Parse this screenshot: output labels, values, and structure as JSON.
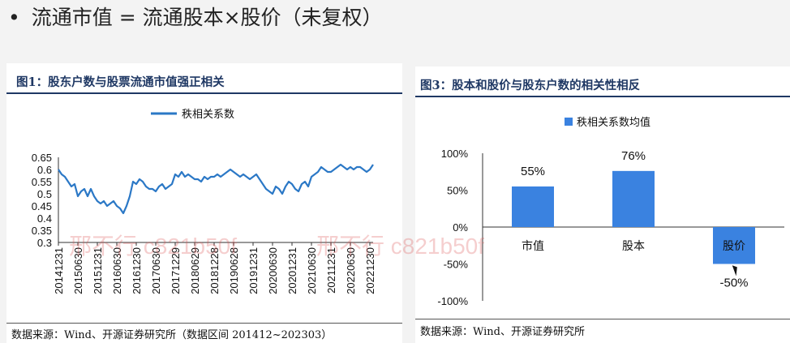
{
  "slide": {
    "bullet": "•",
    "title": "流通市值 = 流通股本×股价（未复权）"
  },
  "panel1": {
    "title": "图1：股东户数与股票流通市值强正相关",
    "source": "数据来源：Wind、开源证券研究所（数据区间 201412~202303）"
  },
  "panel2": {
    "title": "图3：股本和股价与股东户数的相关性相反",
    "source": "数据来源：Wind、开源证券研究所"
  },
  "watermark": {
    "text1": "邢不行 c821b50f",
    "text2": "邢不行 c821b50f"
  },
  "colors": {
    "line": "#2b78c6",
    "bar": "#3a82e0",
    "accent": "#1f3864"
  },
  "chart_data": [
    {
      "type": "line",
      "ylim": [
        0.3,
        0.65
      ],
      "yticks": [
        "0.3",
        "0.35",
        "0.4",
        "0.45",
        "0.5",
        "0.55",
        "0.6",
        "0.65"
      ],
      "xticks": [
        "20141231",
        "20150630",
        "20151231",
        "20160630",
        "20161230",
        "20170630",
        "20171229",
        "20180629",
        "20181228",
        "20190628",
        "20191231",
        "20200630",
        "20201231",
        "20210630",
        "20211231",
        "20220630",
        "20221230"
      ],
      "legend": "秩相关系数",
      "series": [
        {
          "name": "秩相关系数",
          "x_start": "2014-12",
          "x_end": "2023-03",
          "frequency": "monthly",
          "values": [
            0.6,
            0.58,
            0.57,
            0.55,
            0.53,
            0.54,
            0.49,
            0.51,
            0.52,
            0.49,
            0.52,
            0.49,
            0.47,
            0.46,
            0.47,
            0.45,
            0.46,
            0.47,
            0.45,
            0.44,
            0.42,
            0.45,
            0.49,
            0.55,
            0.54,
            0.56,
            0.55,
            0.53,
            0.52,
            0.52,
            0.51,
            0.53,
            0.54,
            0.52,
            0.53,
            0.54,
            0.58,
            0.57,
            0.59,
            0.57,
            0.58,
            0.57,
            0.56,
            0.56,
            0.55,
            0.57,
            0.56,
            0.57,
            0.57,
            0.58,
            0.57,
            0.58,
            0.59,
            0.6,
            0.59,
            0.58,
            0.57,
            0.58,
            0.57,
            0.56,
            0.57,
            0.58,
            0.56,
            0.54,
            0.52,
            0.51,
            0.5,
            0.53,
            0.52,
            0.5,
            0.53,
            0.55,
            0.54,
            0.52,
            0.51,
            0.54,
            0.55,
            0.53,
            0.57,
            0.58,
            0.59,
            0.61,
            0.6,
            0.59,
            0.59,
            0.6,
            0.61,
            0.62,
            0.61,
            0.6,
            0.61,
            0.6,
            0.61,
            0.61,
            0.6,
            0.59,
            0.6,
            0.62
          ]
        }
      ]
    },
    {
      "type": "bar",
      "categories": [
        "市值",
        "股本",
        "股价"
      ],
      "values": [
        55,
        76,
        -50
      ],
      "data_labels": [
        "55%",
        "76%",
        "-50%"
      ],
      "ylim": [
        -100,
        100
      ],
      "yticks": [
        "-100%",
        "-50%",
        "0%",
        "50%",
        "100%"
      ],
      "legend": "秩相关系数均值"
    }
  ]
}
